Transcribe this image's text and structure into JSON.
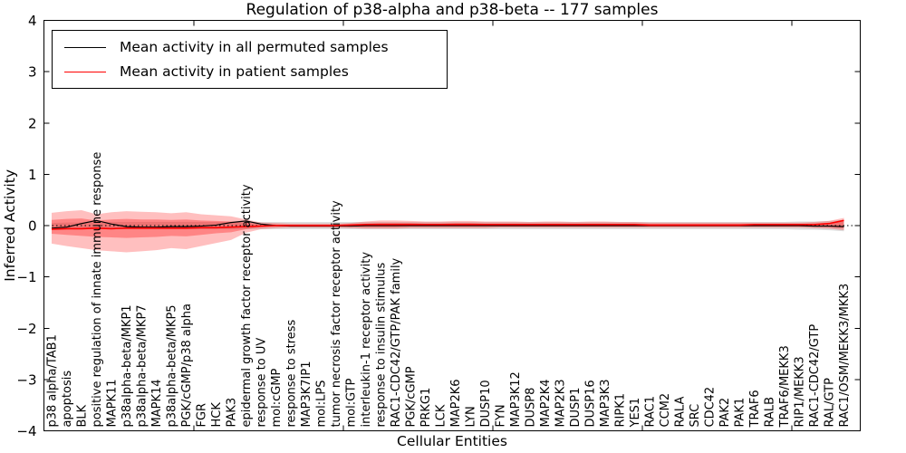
{
  "chart_data": {
    "type": "line",
    "title": "Regulation of p38-alpha and p38-beta -- 177 samples",
    "xlabel": "Cellular Entities",
    "ylabel": "Inferred Activity",
    "ylim": [
      -4,
      4
    ],
    "yticks": [
      4,
      3,
      2,
      1,
      0,
      -1,
      -2,
      -3,
      -4
    ],
    "xtick_positions": [
      10,
      20,
      30,
      40,
      50
    ],
    "grid": false,
    "legend_position": "upper left",
    "zero_line_style": "dotted",
    "categories": [
      "p38 alpha/TAB1",
      "apoptosis",
      "BLK",
      "positive regulation of innate immune response",
      "MAPK11",
      "p38alpha-beta/MKP1",
      "p38alpha-beta/MKP7",
      "MAPK14",
      "p38alpha-beta/MKP5",
      "PGK/cGMP/p38 alpha",
      "FGR",
      "HCK",
      "PAK3",
      "epidermal growth factor receptor activity",
      "response to UV",
      "mol:cGMP",
      "response to stress",
      "MAP3K7IP1",
      "mol:LPS",
      "tumor necrosis factor receptor activity",
      "mol:GTP",
      "interleukin-1 receptor activity",
      "response to insulin stimulus",
      "RAC1-CDC42/GTP/PAK family",
      "PGK/cGMP",
      "PRKG1",
      "LCK",
      "MAP2K6",
      "LYN",
      "DUSP10",
      "FYN",
      "MAP3K12",
      "DUSP8",
      "MAP2K4",
      "MAP2K3",
      "DUSP1",
      "DUSP16",
      "MAP3K3",
      "RIPK1",
      "YES1",
      "RAC1",
      "CCM2",
      "RALA",
      "SRC",
      "CDC42",
      "PAK2",
      "PAK1",
      "TRAF6",
      "RALB",
      "TRAF6/MEKK3",
      "RIP1/MEKK3",
      "RAC1-CDC42/GTP",
      "RAL/GTP",
      "RAC1/OSM/MEKK3/MKK3"
    ],
    "series": [
      {
        "name": "Mean activity in all permuted samples",
        "color": "#000000",
        "values": [
          -0.05,
          -0.03,
          0.04,
          0.1,
          0.03,
          -0.02,
          -0.03,
          -0.03,
          -0.02,
          -0.02,
          -0.01,
          0.01,
          0.06,
          0.09,
          0.03,
          0.0,
          -0.01,
          -0.01,
          -0.01,
          -0.01,
          -0.01,
          0.0,
          0.0,
          0.0,
          0.0,
          0.0,
          0.0,
          0.0,
          0.0,
          0.0,
          0.0,
          0.0,
          0.0,
          0.0,
          0.0,
          0.0,
          0.0,
          0.0,
          0.0,
          0.0,
          0.0,
          0.0,
          0.0,
          0.0,
          0.0,
          0.0,
          0.0,
          0.0,
          0.0,
          0.0,
          0.0,
          -0.01,
          -0.01,
          -0.02
        ]
      },
      {
        "name": "Mean activity in patient samples",
        "color": "#ff0000",
        "values": [
          -0.07,
          -0.06,
          -0.06,
          -0.05,
          -0.06,
          -0.05,
          -0.05,
          -0.05,
          -0.05,
          -0.05,
          -0.04,
          -0.04,
          -0.03,
          -0.02,
          -0.01,
          0.0,
          0.0,
          0.0,
          0.0,
          0.0,
          0.01,
          0.02,
          0.02,
          0.02,
          0.02,
          0.02,
          0.02,
          0.02,
          0.02,
          0.02,
          0.02,
          0.02,
          0.02,
          0.02,
          0.02,
          0.02,
          0.02,
          0.02,
          0.02,
          0.02,
          0.01,
          0.01,
          0.01,
          0.01,
          0.01,
          0.01,
          0.01,
          0.02,
          0.02,
          0.02,
          0.02,
          0.02,
          0.04,
          0.1
        ]
      }
    ],
    "bands": [
      {
        "name": "permuted-std-band",
        "color": "#000000",
        "opacity": 0.13,
        "upper": [
          0.05,
          0.06,
          0.06,
          0.07,
          0.07,
          0.07,
          0.07,
          0.07,
          0.07,
          0.07,
          0.07,
          0.07,
          0.07,
          0.07,
          0.07,
          0.07,
          0.07,
          0.07,
          0.07,
          0.07,
          0.07,
          0.07,
          0.07,
          0.07,
          0.07,
          0.07,
          0.07,
          0.07,
          0.07,
          0.07,
          0.07,
          0.07,
          0.07,
          0.07,
          0.07,
          0.07,
          0.07,
          0.07,
          0.07,
          0.07,
          0.07,
          0.07,
          0.07,
          0.07,
          0.07,
          0.07,
          0.07,
          0.07,
          0.07,
          0.07,
          0.08,
          0.08,
          0.09,
          0.11
        ],
        "lower": [
          -0.05,
          -0.06,
          -0.06,
          -0.07,
          -0.07,
          -0.07,
          -0.07,
          -0.07,
          -0.07,
          -0.07,
          -0.07,
          -0.07,
          -0.07,
          -0.07,
          -0.07,
          -0.07,
          -0.07,
          -0.07,
          -0.07,
          -0.07,
          -0.07,
          -0.07,
          -0.07,
          -0.07,
          -0.07,
          -0.07,
          -0.07,
          -0.07,
          -0.07,
          -0.07,
          -0.07,
          -0.07,
          -0.07,
          -0.07,
          -0.07,
          -0.07,
          -0.07,
          -0.07,
          -0.07,
          -0.07,
          -0.07,
          -0.07,
          -0.07,
          -0.07,
          -0.07,
          -0.07,
          -0.07,
          -0.07,
          -0.07,
          -0.07,
          -0.08,
          -0.08,
          -0.09,
          -0.11
        ]
      },
      {
        "name": "patient-outer-band",
        "color": "#ff0000",
        "opacity": 0.25,
        "upper": [
          0.25,
          0.28,
          0.3,
          0.22,
          0.26,
          0.28,
          0.27,
          0.26,
          0.24,
          0.26,
          0.22,
          0.2,
          0.18,
          0.12,
          0.06,
          0.05,
          0.04,
          0.04,
          0.04,
          0.04,
          0.05,
          0.08,
          0.1,
          0.1,
          0.09,
          0.08,
          0.08,
          0.09,
          0.09,
          0.08,
          0.08,
          0.08,
          0.07,
          0.08,
          0.08,
          0.07,
          0.08,
          0.08,
          0.07,
          0.07,
          0.06,
          0.06,
          0.06,
          0.06,
          0.06,
          0.06,
          0.06,
          0.06,
          0.06,
          0.06,
          0.06,
          0.07,
          0.09,
          0.15
        ],
        "lower": [
          -0.35,
          -0.4,
          -0.44,
          -0.48,
          -0.5,
          -0.52,
          -0.5,
          -0.48,
          -0.44,
          -0.46,
          -0.4,
          -0.34,
          -0.28,
          -0.14,
          -0.07,
          -0.05,
          -0.04,
          -0.04,
          -0.04,
          -0.04,
          -0.05,
          -0.06,
          -0.06,
          -0.06,
          -0.05,
          -0.05,
          -0.05,
          -0.05,
          -0.05,
          -0.05,
          -0.04,
          -0.04,
          -0.04,
          -0.04,
          -0.04,
          -0.04,
          -0.04,
          -0.04,
          -0.04,
          -0.04,
          -0.04,
          -0.04,
          -0.04,
          -0.04,
          -0.04,
          -0.04,
          -0.04,
          -0.04,
          -0.04,
          -0.04,
          -0.04,
          -0.05,
          -0.06,
          -0.09
        ]
      },
      {
        "name": "patient-inner-band",
        "color": "#ff0000",
        "opacity": 0.3,
        "upper": [
          0.11,
          0.13,
          0.14,
          0.1,
          0.12,
          0.13,
          0.12,
          0.12,
          0.11,
          0.12,
          0.1,
          0.09,
          0.08,
          0.06,
          0.03,
          0.02,
          0.02,
          0.02,
          0.02,
          0.02,
          0.03,
          0.04,
          0.05,
          0.05,
          0.05,
          0.04,
          0.04,
          0.05,
          0.05,
          0.04,
          0.04,
          0.04,
          0.04,
          0.04,
          0.04,
          0.04,
          0.04,
          0.04,
          0.04,
          0.04,
          0.03,
          0.03,
          0.03,
          0.03,
          0.03,
          0.03,
          0.03,
          0.03,
          0.03,
          0.03,
          0.03,
          0.04,
          0.05,
          0.08
        ],
        "lower": [
          -0.16,
          -0.18,
          -0.2,
          -0.22,
          -0.23,
          -0.24,
          -0.23,
          -0.22,
          -0.2,
          -0.21,
          -0.18,
          -0.15,
          -0.13,
          -0.07,
          -0.03,
          -0.02,
          -0.02,
          -0.02,
          -0.02,
          -0.02,
          -0.02,
          -0.03,
          -0.03,
          -0.03,
          -0.02,
          -0.02,
          -0.02,
          -0.02,
          -0.02,
          -0.02,
          -0.02,
          -0.02,
          -0.02,
          -0.02,
          -0.02,
          -0.02,
          -0.02,
          -0.02,
          -0.02,
          -0.02,
          -0.02,
          -0.02,
          -0.02,
          -0.02,
          -0.02,
          -0.02,
          -0.02,
          -0.02,
          -0.02,
          -0.02,
          -0.02,
          -0.02,
          -0.03,
          -0.05
        ]
      }
    ]
  }
}
